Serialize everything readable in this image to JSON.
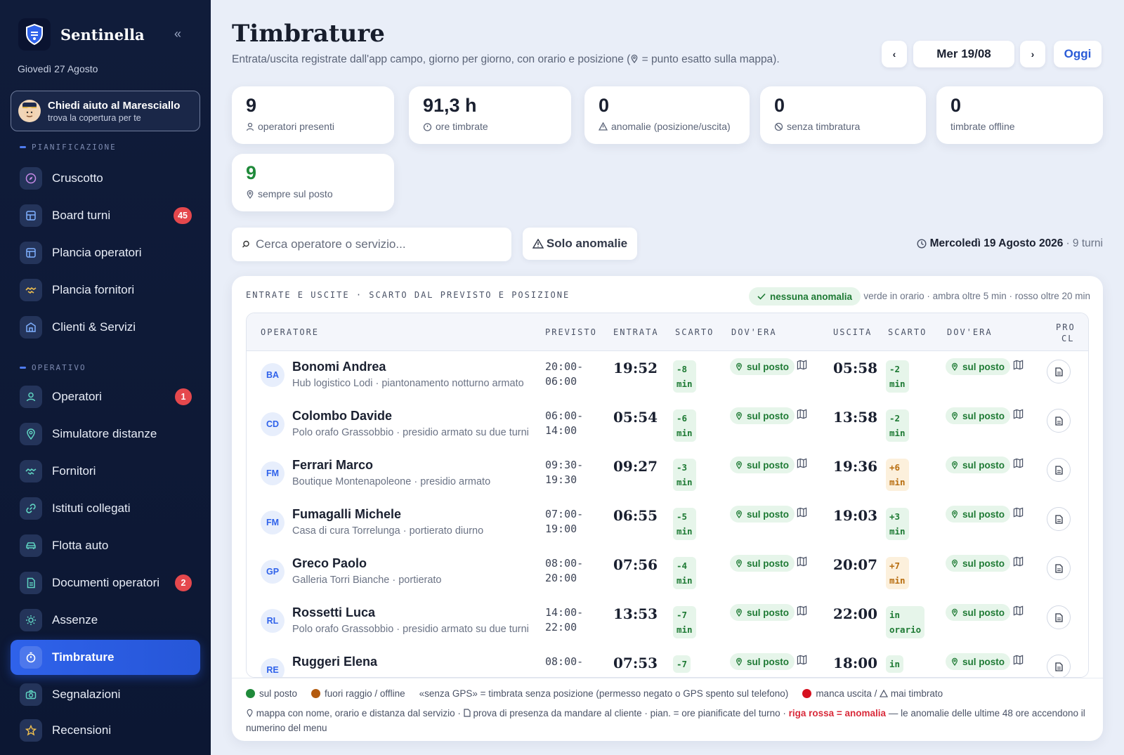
{
  "sidebar": {
    "brand": "Sentinella",
    "date": "Giovedì 27 Agosto",
    "help_title": "Chiedi aiuto al Maresciallo",
    "help_sub": "trova la copertura per te",
    "section_planning": "PIANIFICAZIONE",
    "section_operational": "OPERATIVO",
    "nav": {
      "cruscotto": "Cruscotto",
      "board": "Board turni",
      "board_badge": "45",
      "plancia_op": "Plancia operatori",
      "plancia_forn": "Plancia fornitori",
      "clienti": "Clienti & Servizi",
      "operatori": "Operatori",
      "operatori_badge": "1",
      "simulatore": "Simulatore distanze",
      "fornitori": "Fornitori",
      "istituti": "Istituti collegati",
      "flotta": "Flotta auto",
      "documenti": "Documenti operatori",
      "documenti_badge": "2",
      "assenze": "Assenze",
      "timbrature": "Timbrature",
      "segnalazioni": "Segnalazioni",
      "recensioni": "Recensioni"
    }
  },
  "header": {
    "title": "Timbrature",
    "subtitle_a": "Entrata/uscita registrate dall'app campo, giorno per giorno, con orario e posizione (",
    "subtitle_b": " = punto esatto sulla mappa).",
    "prev": "‹",
    "date": "Mer 19/08",
    "next": "›",
    "today": "Oggi"
  },
  "stats": [
    {
      "value": "9",
      "label": "operatori presenti"
    },
    {
      "value": "91,3 h",
      "label": "ore timbrate"
    },
    {
      "value": "0",
      "label": "anomalie (posizione/uscita)"
    },
    {
      "value": "0",
      "label": "senza timbratura"
    },
    {
      "value": "0",
      "label": "timbrate offline"
    },
    {
      "value": "9",
      "label": "sempre sul posto"
    }
  ],
  "filters": {
    "search_placeholder": "Cerca operatore o servizio...",
    "anomalies_btn": "Solo anomalie",
    "day_label": "Mercoledì 19 Agosto 2026",
    "shift_count": "· 9 turni"
  },
  "panel": {
    "title": "ENTRATE E USCITE · SCARTO DAL PREVISTO E POSIZIONE",
    "ok_badge": "nessuna anomalia",
    "hint": "verde in orario · ambra oltre 5 min · rosso oltre 20 min"
  },
  "table": {
    "columns": {
      "operator": "OPERATORE",
      "planned": "PREVISTO",
      "entry": "ENTRATA",
      "delta_in": "SCARTO",
      "where_in": "DOV'ERA",
      "exit": "USCITA",
      "delta_out": "SCARTO",
      "where_out": "DOV'ERA",
      "proof_a": "PRO",
      "proof_b": "CL"
    },
    "rows": [
      {
        "initials": "BA",
        "name": "Bonomi Andrea",
        "service": "Hub logistico Lodi · piantonamento notturno armato",
        "p_start": "20:00-",
        "p_end": "06:00",
        "entry": "19:52",
        "din_a": "-8",
        "din_b": "min",
        "site_in": "sul posto",
        "exit": "05:58",
        "dout_a": "-2",
        "dout_b": "min",
        "site_out": "sul posto"
      },
      {
        "initials": "CD",
        "name": "Colombo Davide",
        "service": "Polo orafo Grassobbio · presidio armato su due turni",
        "p_start": "06:00-",
        "p_end": "14:00",
        "entry": "05:54",
        "din_a": "-6",
        "din_b": "min",
        "site_in": "sul posto",
        "exit": "13:58",
        "dout_a": "-2",
        "dout_b": "min",
        "site_out": "sul posto"
      },
      {
        "initials": "FM",
        "name": "Ferrari Marco",
        "service": "Boutique Montenapoleone · presidio armato",
        "p_start": "09:30-",
        "p_end": "19:30",
        "entry": "09:27",
        "din_a": "-3",
        "din_b": "min",
        "site_in": "sul posto",
        "exit": "19:36",
        "dout_a": "+6",
        "dout_b": "min",
        "site_out": "sul posto"
      },
      {
        "initials": "FM",
        "name": "Fumagalli Michele",
        "service": "Casa di cura Torrelunga · portierato diurno",
        "p_start": "07:00-",
        "p_end": "19:00",
        "entry": "06:55",
        "din_a": "-5",
        "din_b": "min",
        "site_in": "sul posto",
        "exit": "19:03",
        "dout_a": "+3",
        "dout_b": "min",
        "site_out": "sul posto"
      },
      {
        "initials": "GP",
        "name": "Greco Paolo",
        "service": "Galleria Torri Bianche · portierato",
        "p_start": "08:00-",
        "p_end": "20:00",
        "entry": "07:56",
        "din_a": "-4",
        "din_b": "min",
        "site_in": "sul posto",
        "exit": "20:07",
        "dout_a": "+7",
        "dout_b": "min",
        "site_out": "sul posto"
      },
      {
        "initials": "RL",
        "name": "Rossetti Luca",
        "service": "Polo orafo Grassobbio · presidio armato su due turni",
        "p_start": "14:00-",
        "p_end": "22:00",
        "entry": "13:53",
        "din_a": "-7",
        "din_b": "min",
        "site_in": "sul posto",
        "exit": "22:00",
        "dout_a": "in",
        "dout_b": "orario",
        "site_out": "sul posto"
      },
      {
        "initials": "RE",
        "name": "Ruggeri Elena",
        "service": "",
        "p_start": "08:00-",
        "p_end": "",
        "entry": "07:53",
        "din_a": "-7",
        "din_b": "",
        "site_in": "sul posto",
        "exit": "18:00",
        "dout_a": "in",
        "dout_b": "",
        "site_out": "sul posto"
      }
    ]
  },
  "legend": {
    "on_site": "sul posto",
    "offline": "fuori raggio / offline",
    "no_gps": "«senza GPS» = timbrata senza posizione (permesso negato o GPS spento sul telefono)",
    "missing": "manca uscita /",
    "never": "mai timbrato",
    "map_note": "mappa con nome, orario e distanza dal servizio ·",
    "proof_note": "prova di presenza da mandare al cliente · pian. = ore pianificate del turno ·",
    "red_row": "riga rossa = anomalia",
    "tail": "— le anomalie delle ultime 48 ore accendono il numerino del menu"
  },
  "colors": {
    "accent": "#2f62ea",
    "green": "#1f8a3a",
    "amber": "#b86e10",
    "red": "#d92a3a",
    "sidebar_bg": "#101c3a"
  }
}
